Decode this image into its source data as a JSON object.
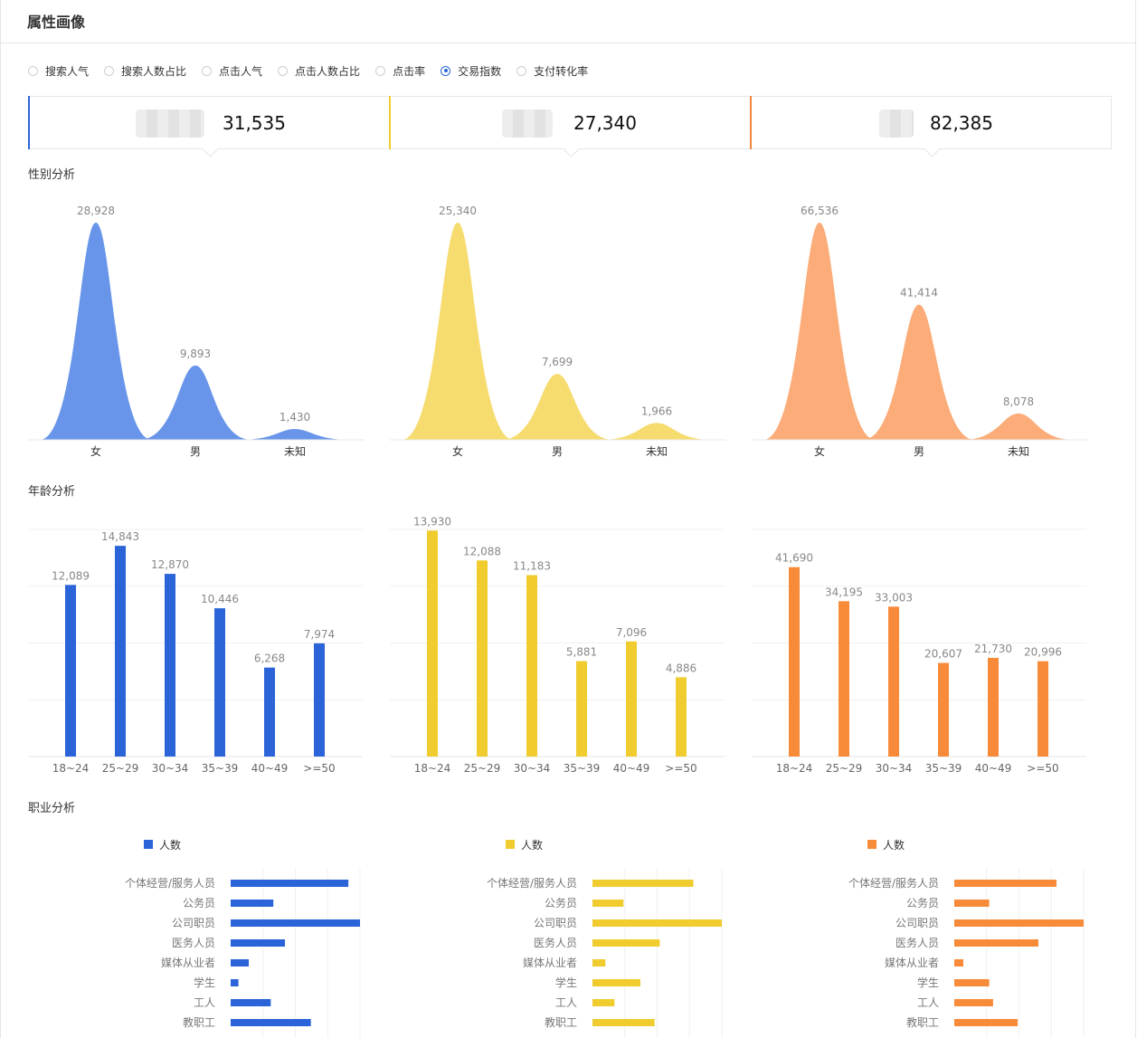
{
  "page": {
    "title": "属性画像"
  },
  "metric_tabs": {
    "options": [
      "搜索人气",
      "搜索人数占比",
      "点击人气",
      "点击人数占比",
      "点击率",
      "交易指数",
      "支付转化率"
    ],
    "selected": "交易指数"
  },
  "cards": [
    {
      "value": "31,535",
      "color": "#2a64d8"
    },
    {
      "value": "27,340",
      "color": "#f0cc2f"
    },
    {
      "value": "82,385",
      "color": "#f0873a"
    }
  ],
  "sections": {
    "gender": "性别分析",
    "age": "年龄分析",
    "occupation": "职业分析"
  },
  "colors": {
    "series": [
      "#2a64d8",
      "#f0cc2f",
      "#f78b3a"
    ],
    "gender_fill": [
      "#5b8ce8",
      "#f5d862",
      "#fba56c"
    ]
  },
  "chart_data": [
    {
      "chart": "gender",
      "type": "area",
      "series_index": 0,
      "title": "性别分析",
      "categories": [
        "女",
        "男",
        "未知"
      ],
      "values": [
        28928,
        9893,
        1430
      ]
    },
    {
      "chart": "gender",
      "type": "area",
      "series_index": 1,
      "title": "性别分析",
      "categories": [
        "女",
        "男",
        "未知"
      ],
      "values": [
        25340,
        7699,
        1966
      ]
    },
    {
      "chart": "gender",
      "type": "area",
      "series_index": 2,
      "title": "性别分析",
      "categories": [
        "女",
        "男",
        "未知"
      ],
      "values": [
        66536,
        41414,
        8078
      ]
    },
    {
      "chart": "age",
      "type": "bar",
      "series_index": 0,
      "title": "年龄分析",
      "categories": [
        "18~24",
        "25~29",
        "30~34",
        "35~39",
        "40~49",
        ">=50"
      ],
      "values": [
        12089,
        14843,
        12870,
        10446,
        6268,
        7974
      ],
      "ylim": [
        0,
        16000
      ],
      "grid": true
    },
    {
      "chart": "age",
      "type": "bar",
      "series_index": 1,
      "title": "年龄分析",
      "categories": [
        "18~24",
        "25~29",
        "30~34",
        "35~39",
        "40~49",
        ">=50"
      ],
      "values": [
        13930,
        12088,
        11183,
        5881,
        7096,
        4886
      ],
      "ylim": [
        0,
        14000
      ],
      "grid": true
    },
    {
      "chart": "age",
      "type": "bar",
      "series_index": 2,
      "title": "年龄分析",
      "categories": [
        "18~24",
        "25~29",
        "30~34",
        "35~39",
        "40~49",
        ">=50"
      ],
      "values": [
        41690,
        34195,
        33003,
        20607,
        21730,
        20996
      ],
      "ylim": [
        0,
        50000
      ],
      "grid": true
    },
    {
      "chart": "occupation",
      "type": "bar",
      "orientation": "horizontal",
      "series_index": 0,
      "title": "职业分析",
      "legend": "人数",
      "categories": [
        "个体经营/服务人员",
        "公务员",
        "公司职员",
        "医务人员",
        "媒体从业者",
        "学生",
        "工人",
        "教职工"
      ],
      "values": [
        0.91,
        0.33,
        1.0,
        0.42,
        0.14,
        0.06,
        0.31,
        0.62
      ],
      "xlim": [
        0,
        1
      ]
    },
    {
      "chart": "occupation",
      "type": "bar",
      "orientation": "horizontal",
      "series_index": 1,
      "title": "职业分析",
      "legend": "人数",
      "categories": [
        "个体经营/服务人员",
        "公务员",
        "公司职员",
        "医务人员",
        "媒体从业者",
        "学生",
        "工人",
        "教职工"
      ],
      "values": [
        0.78,
        0.24,
        1.0,
        0.52,
        0.1,
        0.37,
        0.17,
        0.48
      ],
      "xlim": [
        0,
        1
      ]
    },
    {
      "chart": "occupation",
      "type": "bar",
      "orientation": "horizontal",
      "series_index": 2,
      "title": "职业分析",
      "legend": "人数",
      "categories": [
        "个体经营/服务人员",
        "公务员",
        "公司职员",
        "医务人员",
        "媒体从业者",
        "学生",
        "工人",
        "教职工"
      ],
      "values": [
        0.79,
        0.27,
        1.0,
        0.65,
        0.07,
        0.27,
        0.3,
        0.49
      ],
      "xlim": [
        0,
        1
      ]
    }
  ]
}
